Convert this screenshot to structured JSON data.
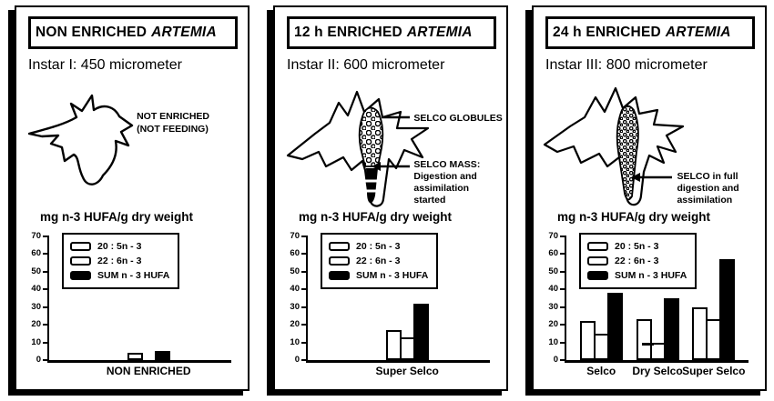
{
  "figure": {
    "background": "#ffffff",
    "ink": "#000000",
    "description_names": [
      "artemia-nauplius-illustration"
    ]
  },
  "panels": [
    {
      "title_prefix": "NON ENRICHED",
      "title_species": "ARTEMIA",
      "instar": "Instar I: 450 micrometer",
      "annotation": "NOT ENRICHED\n(NOT FEEDING)"
    },
    {
      "title_prefix": "12 h ENRICHED",
      "title_species": "ARTEMIA",
      "instar": "Instar II: 600 micrometer",
      "callouts": [
        {
          "text": "SELCO GLOBULES"
        },
        {
          "text": "SELCO MASS:\nDigestion and\nassimilation\nstarted"
        }
      ]
    },
    {
      "title_prefix": "24 h ENRICHED",
      "title_species": "ARTEMIA",
      "instar": "Instar III: 800 micrometer",
      "callouts": [
        {
          "text": "SELCO in full\ndigestion and\nassimilation"
        }
      ]
    }
  ],
  "chart_data": [
    {
      "type": "bar",
      "title": "mg n-3 HUFA/g dry weight",
      "categories": [
        "NON ENRICHED"
      ],
      "series": [
        {
          "name": "20 : 5n - 3",
          "fill": "#ffffff",
          "values": [
            4
          ]
        },
        {
          "name": "22 : 6n - 3",
          "fill": "#ffffff",
          "values": [
            0
          ]
        },
        {
          "name": "SUM n - 3 HUFA",
          "fill": "#000000",
          "values": [
            5
          ]
        }
      ],
      "ylim": [
        0,
        70
      ],
      "yticks": [
        0,
        10,
        20,
        30,
        40,
        50,
        60,
        70
      ],
      "grid": false,
      "legend_position": "top-left"
    },
    {
      "type": "bar",
      "title": "mg n-3 HUFA/g dry weight",
      "categories": [
        "Super Selco"
      ],
      "series": [
        {
          "name": "20 : 5n - 3",
          "fill": "#ffffff",
          "values": [
            17
          ]
        },
        {
          "name": "22 : 6n - 3",
          "fill": "#ffffff",
          "values": [
            13
          ]
        },
        {
          "name": "SUM n - 3 HUFA",
          "fill": "#000000",
          "values": [
            32
          ]
        }
      ],
      "ylim": [
        0,
        70
      ],
      "yticks": [
        0,
        10,
        20,
        30,
        40,
        50,
        60,
        70
      ],
      "grid": false,
      "legend_position": "top-left"
    },
    {
      "type": "bar",
      "title": "mg n-3 HUFA/g dry weight",
      "categories": [
        "Selco",
        "Dry Selco",
        "Super Selco"
      ],
      "series": [
        {
          "name": "20 : 5n - 3",
          "fill": "#ffffff",
          "values": [
            22,
            23,
            30
          ]
        },
        {
          "name": "22 : 6n - 3",
          "fill": "#ffffff",
          "values": [
            15,
            10,
            23
          ]
        },
        {
          "name": "SUM n - 3 HUFA",
          "fill": "#000000",
          "values": [
            38,
            35,
            57
          ]
        }
      ],
      "ylim": [
        0,
        70
      ],
      "yticks": [
        0,
        10,
        20,
        30,
        40,
        50,
        60,
        70
      ],
      "grid": false,
      "legend_position": "top-left",
      "annotations": [
        {
          "category": "Dry Selco",
          "series": "22 : 6n - 3",
          "type": "dash-marker"
        }
      ]
    }
  ]
}
